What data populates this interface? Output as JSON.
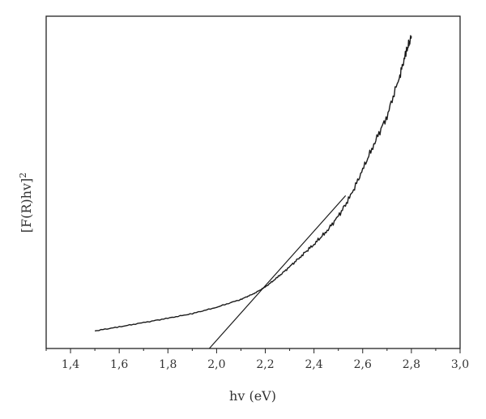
{
  "chart_data": {
    "type": "line",
    "xlabel": "hv (eV)",
    "ylabel": {
      "base": "[F(R)hv]",
      "sup": "2"
    },
    "xlim": [
      1.3,
      3.0
    ],
    "ylim": [
      0,
      100
    ],
    "x_ticks": [
      "1,4",
      "1,6",
      "1,8",
      "2,0",
      "2,2",
      "2,4",
      "2,6",
      "2,8",
      "3,0"
    ],
    "x_tick_values": [
      1.4,
      1.6,
      1.8,
      2.0,
      2.2,
      2.4,
      2.6,
      2.8,
      3.0
    ],
    "grid": false,
    "series": [
      {
        "role": "spectrum",
        "x": [
          1.5,
          1.6,
          1.7,
          1.8,
          1.9,
          2.0,
          2.1,
          2.15,
          2.2,
          2.25,
          2.3,
          2.35,
          2.4,
          2.45,
          2.5,
          2.55,
          2.6,
          2.65,
          2.7,
          2.75,
          2.78,
          2.8
        ],
        "y": [
          5.3,
          6.5,
          7.8,
          9.1,
          10.5,
          12.4,
          14.8,
          16.4,
          18.5,
          21.4,
          24.6,
          28.0,
          31.4,
          35.1,
          39.8,
          45.8,
          53.8,
          62.1,
          70.0,
          81.5,
          89.5,
          94.0
        ]
      },
      {
        "role": "tangent-fit",
        "x": [
          1.97,
          2.53
        ],
        "y": [
          0.0,
          46.0
        ]
      }
    ]
  }
}
